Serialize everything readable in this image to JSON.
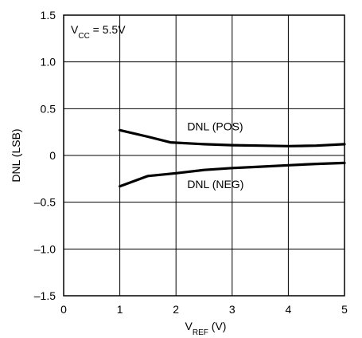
{
  "chart_data": {
    "type": "line",
    "title": "",
    "annotation": "V_CC = 5.5V",
    "xlabel": "V_REF (V)",
    "ylabel": "DNL (LSB)",
    "xlim": [
      0,
      5
    ],
    "ylim": [
      -1.5,
      1.5
    ],
    "x_ticks": [
      0,
      1,
      2,
      3,
      4,
      5
    ],
    "y_ticks": [
      -1.5,
      -1.0,
      -0.5,
      0,
      0.5,
      1.0,
      1.5
    ],
    "y_tick_labels": [
      "–1.5",
      "–1.0",
      "–0.5",
      "0",
      "0.5",
      "1.0",
      "1.5"
    ],
    "grid": true,
    "series": [
      {
        "name": "DNL (POS)",
        "x": [
          1,
          1.5,
          1.9,
          2.5,
          3,
          3.5,
          4,
          4.5,
          5
        ],
        "y": [
          0.27,
          0.2,
          0.14,
          0.12,
          0.11,
          0.105,
          0.1,
          0.105,
          0.12
        ]
      },
      {
        "name": "DNL (NEG)",
        "x": [
          1,
          1.5,
          2,
          2.5,
          3,
          3.5,
          4,
          4.5,
          5
        ],
        "y": [
          -0.33,
          -0.22,
          -0.19,
          -0.155,
          -0.135,
          -0.12,
          -0.105,
          -0.09,
          -0.08
        ]
      }
    ]
  }
}
